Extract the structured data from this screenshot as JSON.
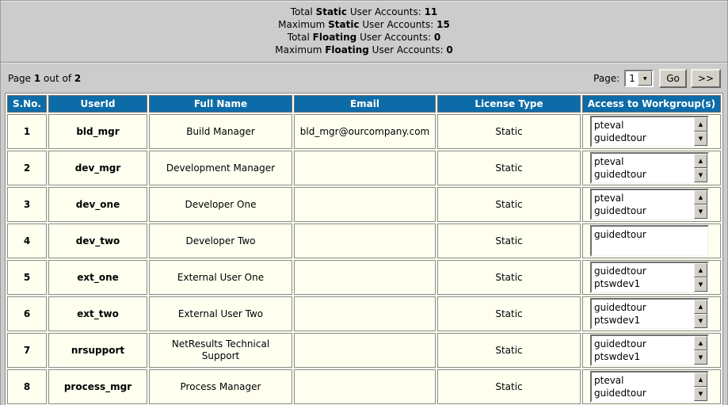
{
  "summary": {
    "rows": [
      {
        "pre": "Total ",
        "type": "Static",
        "post": " User Accounts: ",
        "value": "11"
      },
      {
        "pre": "Maximum ",
        "type": "Static",
        "post": " User Accounts: ",
        "value": "15"
      },
      {
        "pre": "Total ",
        "type": "Floating",
        "post": " User Accounts: ",
        "value": "0"
      },
      {
        "pre": "Maximum ",
        "type": "Floating",
        "post": " User Accounts: ",
        "value": "0"
      }
    ]
  },
  "pagination": {
    "indicator": {
      "pre": "Page ",
      "current": "1",
      "mid": " out of ",
      "total": "2"
    },
    "label": "Page:",
    "selected_page": "1",
    "go_label": "Go",
    "next_label": ">>"
  },
  "table": {
    "headers": [
      "S.No.",
      "UserId",
      "Full Name",
      "Email",
      "License Type",
      "Access to Workgroup(s)"
    ],
    "rows": [
      {
        "sno": "1",
        "userid": "bld_mgr",
        "full_name": "Build Manager",
        "email": "bld_mgr@ourcompany.com",
        "license_type": "Static",
        "workgroups": [
          "pteval",
          "guidedtour"
        ]
      },
      {
        "sno": "2",
        "userid": "dev_mgr",
        "full_name": "Development Manager",
        "email": "",
        "license_type": "Static",
        "workgroups": [
          "pteval",
          "guidedtour"
        ]
      },
      {
        "sno": "3",
        "userid": "dev_one",
        "full_name": "Developer One",
        "email": "",
        "license_type": "Static",
        "workgroups": [
          "pteval",
          "guidedtour"
        ]
      },
      {
        "sno": "4",
        "userid": "dev_two",
        "full_name": "Developer Two",
        "email": "",
        "license_type": "Static",
        "workgroups": [
          "guidedtour"
        ]
      },
      {
        "sno": "5",
        "userid": "ext_one",
        "full_name": "External User One",
        "email": "",
        "license_type": "Static",
        "workgroups": [
          "guidedtour",
          "ptswdev1"
        ]
      },
      {
        "sno": "6",
        "userid": "ext_two",
        "full_name": "External User Two",
        "email": "",
        "license_type": "Static",
        "workgroups": [
          "guidedtour",
          "ptswdev1"
        ]
      },
      {
        "sno": "7",
        "userid": "nrsupport",
        "full_name": "NetResults Technical Support",
        "email": "",
        "license_type": "Static",
        "workgroups": [
          "guidedtour",
          "ptswdev1"
        ]
      },
      {
        "sno": "8",
        "userid": "process_mgr",
        "full_name": "Process Manager",
        "email": "",
        "license_type": "Static",
        "workgroups": [
          "pteval",
          "guidedtour"
        ]
      }
    ]
  },
  "icons": {
    "scroll_up": "▲",
    "scroll_down": "▼",
    "dropdown_arrow": "▼"
  },
  "colors": {
    "page_bg": "#cccccc",
    "header_bg": "#0d6ca8",
    "header_text": "#ffffff",
    "cell_bg": "#fffff0",
    "cell_border": "#8a8a8a",
    "control_bg": "#d3d0c7"
  }
}
